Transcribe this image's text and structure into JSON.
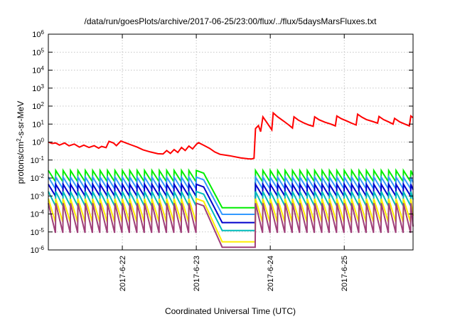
{
  "chart_data": {
    "type": "line",
    "title": "/data/run/goesPlots/archive/2017-06-25/23:00/flux/../flux/5daysMarsFluxes.txt",
    "xlabel": "Coordinated Universal Time (UTC)",
    "ylabel_prefix": "protons/cm",
    "ylabel_sup": "2",
    "ylabel_suffix": "-s-sr-MeV",
    "xlim_days": [
      0,
      4.93
    ],
    "ylim_log10": [
      -6,
      6
    ],
    "y_scale": "log",
    "grid": true,
    "x_ticks": [
      {
        "label": "2017-6-22",
        "day": 1.0
      },
      {
        "label": "2017-6-23",
        "day": 2.0
      },
      {
        "label": "2017-6-24",
        "day": 3.0
      },
      {
        "label": "2017-6-25",
        "day": 4.0
      }
    ],
    "y_ticks": [
      {
        "base": "10",
        "exp": "-6",
        "log": -6
      },
      {
        "base": "10",
        "exp": "-5",
        "log": -5
      },
      {
        "base": "10",
        "exp": "-4",
        "log": -4
      },
      {
        "base": "10",
        "exp": "-3",
        "log": -3
      },
      {
        "base": "10",
        "exp": "-2",
        "log": -2
      },
      {
        "base": "10",
        "exp": "-1",
        "log": -1
      },
      {
        "base": "10",
        "exp": "0",
        "log": 0
      },
      {
        "base": "10",
        "exp": "1",
        "log": 1
      },
      {
        "base": "10",
        "exp": "2",
        "log": 2
      },
      {
        "base": "10",
        "exp": "3",
        "log": 3
      },
      {
        "base": "10",
        "exp": "4",
        "log": 4
      },
      {
        "base": "10",
        "exp": "5",
        "log": 5
      },
      {
        "base": "10",
        "exp": "6",
        "log": 6
      }
    ],
    "series": [
      {
        "color": "#ff0000",
        "width": 2,
        "points": [
          [
            0.0,
            0.0
          ],
          [
            0.05,
            -0.08
          ],
          [
            0.1,
            -0.05
          ],
          [
            0.15,
            -0.17
          ],
          [
            0.22,
            -0.05
          ],
          [
            0.28,
            -0.21
          ],
          [
            0.35,
            -0.11
          ],
          [
            0.42,
            -0.28
          ],
          [
            0.48,
            -0.17
          ],
          [
            0.55,
            -0.3
          ],
          [
            0.62,
            -0.2
          ],
          [
            0.68,
            -0.34
          ],
          [
            0.72,
            -0.24
          ],
          [
            0.78,
            -0.31
          ],
          [
            0.82,
            0.04
          ],
          [
            0.88,
            -0.05
          ],
          [
            0.92,
            -0.2
          ],
          [
            0.98,
            0.06
          ],
          [
            1.05,
            -0.05
          ],
          [
            1.12,
            -0.16
          ],
          [
            1.2,
            -0.28
          ],
          [
            1.28,
            -0.43
          ],
          [
            1.38,
            -0.55
          ],
          [
            1.48,
            -0.65
          ],
          [
            1.55,
            -0.66
          ],
          [
            1.6,
            -0.47
          ],
          [
            1.65,
            -0.63
          ],
          [
            1.7,
            -0.42
          ],
          [
            1.75,
            -0.58
          ],
          [
            1.8,
            -0.3
          ],
          [
            1.85,
            -0.47
          ],
          [
            1.9,
            -0.22
          ],
          [
            1.95,
            -0.38
          ],
          [
            2.0,
            -0.13
          ],
          [
            2.03,
            -0.03
          ],
          [
            2.1,
            -0.18
          ],
          [
            2.18,
            -0.35
          ],
          [
            2.25,
            -0.55
          ],
          [
            2.32,
            -0.68
          ],
          [
            2.45,
            -0.76
          ],
          [
            2.6,
            -0.88
          ],
          [
            2.7,
            -0.93
          ],
          [
            2.75,
            -0.94
          ],
          [
            2.78,
            -0.9
          ],
          [
            2.8,
            0.75
          ],
          [
            2.84,
            0.92
          ],
          [
            2.87,
            0.58
          ],
          [
            2.9,
            1.4
          ],
          [
            2.96,
            1.05
          ],
          [
            3.02,
            0.68
          ],
          [
            3.04,
            1.62
          ],
          [
            3.1,
            1.4
          ],
          [
            3.18,
            1.17
          ],
          [
            3.25,
            0.95
          ],
          [
            3.3,
            0.78
          ],
          [
            3.32,
            1.4
          ],
          [
            3.38,
            1.22
          ],
          [
            3.45,
            1.07
          ],
          [
            3.52,
            0.95
          ],
          [
            3.58,
            0.88
          ],
          [
            3.6,
            1.4
          ],
          [
            3.66,
            1.24
          ],
          [
            3.74,
            1.1
          ],
          [
            3.82,
            1.0
          ],
          [
            3.88,
            0.9
          ],
          [
            3.9,
            1.45
          ],
          [
            3.96,
            1.3
          ],
          [
            4.04,
            1.16
          ],
          [
            4.1,
            1.05
          ],
          [
            4.16,
            0.95
          ],
          [
            4.18,
            1.55
          ],
          [
            4.24,
            1.38
          ],
          [
            4.3,
            1.25
          ],
          [
            4.38,
            1.15
          ],
          [
            4.45,
            1.05
          ],
          [
            4.47,
            1.42
          ],
          [
            4.53,
            1.25
          ],
          [
            4.6,
            1.12
          ],
          [
            4.66,
            1.0
          ],
          [
            4.68,
            1.32
          ],
          [
            4.75,
            1.12
          ],
          [
            4.82,
            1.0
          ],
          [
            4.88,
            0.9
          ],
          [
            4.9,
            1.45
          ],
          [
            4.93,
            1.35
          ]
        ]
      },
      {
        "color": "#00ee00",
        "width": 2,
        "sawtooth": {
          "hi": -1.58,
          "lo": -2.2,
          "dip": -3.65
        }
      },
      {
        "color": "#3399ff",
        "width": 2,
        "sawtooth": {
          "hi": -1.95,
          "lo": -2.6,
          "dip": -4.02
        }
      },
      {
        "color": "#0000cc",
        "width": 2,
        "sawtooth": {
          "hi": -2.35,
          "lo": -3.0,
          "dip": -4.48
        }
      },
      {
        "color": "#00bbbb",
        "width": 2,
        "sawtooth": {
          "hi": -2.75,
          "lo": -3.55,
          "dip": -4.92
        }
      },
      {
        "color": "#ffee00",
        "width": 2,
        "sawtooth": {
          "hi": -3.15,
          "lo": -4.45,
          "dip": -5.55
        }
      },
      {
        "color": "#a0407a",
        "width": 2,
        "sawtooth": {
          "hi": -3.4,
          "lo": -5.05,
          "dip": -5.85
        }
      }
    ],
    "sawtooth_spikes_days": [
      0.0,
      0.1,
      0.2,
      0.3,
      0.4,
      0.5,
      0.6,
      0.7,
      0.8,
      0.9,
      1.0,
      1.1,
      1.2,
      1.3,
      1.4,
      1.5,
      1.6,
      1.7,
      1.8,
      1.9,
      2.0,
      2.8,
      2.9,
      3.0,
      3.1,
      3.2,
      3.3,
      3.4,
      3.5,
      3.6,
      3.7,
      3.8,
      3.9,
      4.0,
      4.1,
      4.2,
      4.3,
      4.4,
      4.5,
      4.6,
      4.7,
      4.8,
      4.9
    ],
    "dip_days": {
      "fall_start": 2.1,
      "fall_end": 2.35,
      "flat_until": 2.75,
      "recover": 2.79
    }
  }
}
